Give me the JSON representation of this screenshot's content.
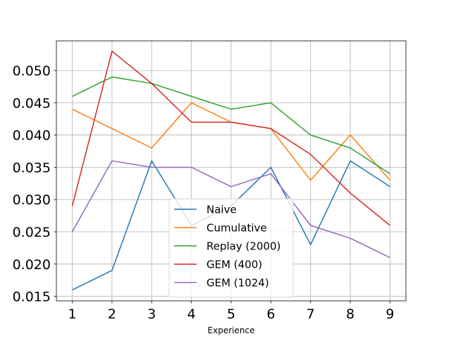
{
  "chart_data": {
    "type": "line",
    "title": "",
    "xlabel": "Experience",
    "ylabel": "",
    "x": [
      1,
      2,
      3,
      4,
      5,
      6,
      7,
      8,
      9
    ],
    "xlim": [
      0.6,
      9.4
    ],
    "ylim": [
      0.0143,
      0.0546
    ],
    "x_ticks": [
      1,
      2,
      3,
      4,
      5,
      6,
      7,
      8,
      9
    ],
    "y_ticks": [
      0.015,
      0.02,
      0.025,
      0.03,
      0.035,
      0.04,
      0.045,
      0.05
    ],
    "y_tick_labels": [
      "0.015",
      "0.020",
      "0.025",
      "0.030",
      "0.035",
      "0.040",
      "0.045",
      "0.050"
    ],
    "grid": true,
    "legend_position": "lower center",
    "series": [
      {
        "name": "Naive",
        "color": "#1f77b4",
        "values": [
          0.016,
          0.019,
          0.036,
          0.026,
          0.029,
          0.035,
          0.023,
          0.036,
          0.032
        ]
      },
      {
        "name": "Cumulative",
        "color": "#ff7f0e",
        "values": [
          0.044,
          0.041,
          0.038,
          0.045,
          0.042,
          0.041,
          0.033,
          0.04,
          0.033
        ]
      },
      {
        "name": "Replay (2000)",
        "color": "#2ca02c",
        "values": [
          0.046,
          0.049,
          0.048,
          0.046,
          0.044,
          0.045,
          0.04,
          0.038,
          0.034
        ]
      },
      {
        "name": "GEM (400)",
        "color": "#d62728",
        "values": [
          0.029,
          0.053,
          0.048,
          0.042,
          0.042,
          0.041,
          0.037,
          0.031,
          0.026
        ]
      },
      {
        "name": "GEM (1024)",
        "color": "#9467bd",
        "values": [
          0.025,
          0.036,
          0.035,
          0.035,
          0.032,
          0.034,
          0.026,
          0.024,
          0.021
        ]
      }
    ]
  }
}
